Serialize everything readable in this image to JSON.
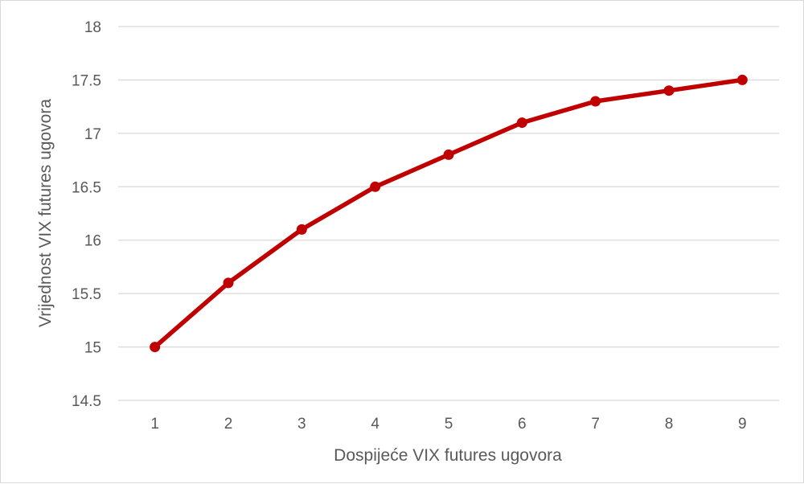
{
  "chart_data": {
    "type": "line",
    "xlabel": "Dospijeće VIX futures ugovora",
    "ylabel": "Vrijednost VIX futures ugovora",
    "x": [
      1,
      2,
      3,
      4,
      5,
      6,
      7,
      8,
      9
    ],
    "series": [
      {
        "values": [
          15.0,
          15.6,
          16.1,
          16.5,
          16.8,
          17.1,
          17.3,
          17.4,
          17.5
        ],
        "color": "#c00000"
      }
    ],
    "ylim": [
      14.5,
      18
    ],
    "yticks": [
      "14.5",
      "15",
      "15.5",
      "16",
      "16.5",
      "17",
      "17.5",
      "18"
    ],
    "xticks": [
      "1",
      "2",
      "3",
      "4",
      "5",
      "6",
      "7",
      "8",
      "9"
    ],
    "grid": "horizontal",
    "gridline_color": "#d9d9d9",
    "legend": "none"
  }
}
